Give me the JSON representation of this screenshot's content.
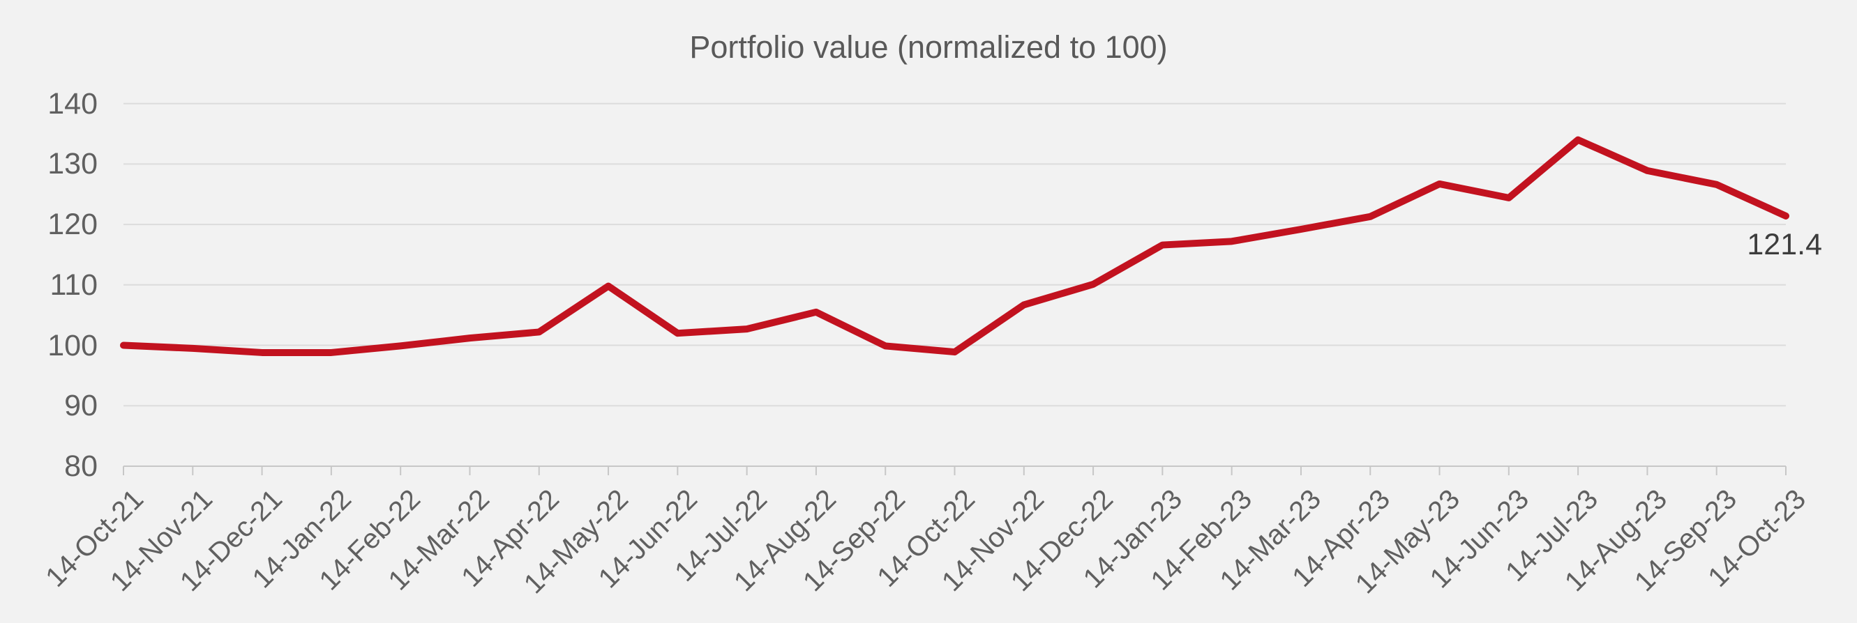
{
  "chart_data": {
    "type": "line",
    "title": "Portfolio value (normalized to 100)",
    "x": [
      "14-Oct-21",
      "14-Nov-21",
      "14-Dec-21",
      "14-Jan-22",
      "14-Feb-22",
      "14-Mar-22",
      "14-Apr-22",
      "14-May-22",
      "14-Jun-22",
      "14-Jul-22",
      "14-Aug-22",
      "14-Sep-22",
      "14-Oct-22",
      "14-Nov-22",
      "14-Dec-22",
      "14-Jan-23",
      "14-Feb-23",
      "14-Mar-23",
      "14-Apr-23",
      "14-May-23",
      "14-Jun-23",
      "14-Jul-23",
      "14-Aug-23",
      "14-Sep-23",
      "14-Oct-23"
    ],
    "series": [
      {
        "name": "Portfolio value",
        "values": [
          100.0,
          99.5,
          98.8,
          98.8,
          99.9,
          101.2,
          102.2,
          109.8,
          102.0,
          102.7,
          105.5,
          99.9,
          98.9,
          106.7,
          110.1,
          116.6,
          117.2,
          119.2,
          121.3,
          126.7,
          124.4,
          134.0,
          128.9,
          126.6,
          121.4
        ]
      }
    ],
    "ylim": [
      80,
      140
    ],
    "yticks": [
      140,
      130,
      120,
      110,
      100,
      90,
      80
    ],
    "xlabel": "",
    "ylabel": "",
    "legend_position": "none",
    "grid": "horizontal",
    "end_label": "121.4",
    "colors": {
      "line": "#c2121f",
      "background": "#f2f2f2",
      "gridline": "#dcdcdc",
      "axis": "#c7c7c7",
      "tick_text": "#606060",
      "title_text": "#595959",
      "end_label_text": "#3d3d3d"
    }
  }
}
